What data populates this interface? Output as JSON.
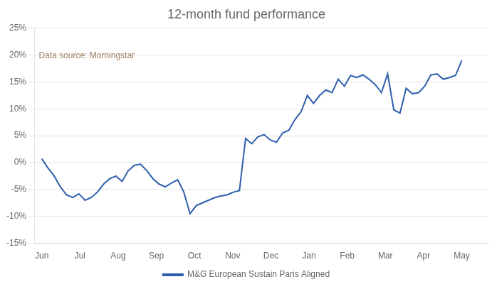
{
  "chart_data": {
    "type": "line",
    "title": "12-month fund performance",
    "annotation": {
      "text": "Data source: Morningstar",
      "color": "#a08060"
    },
    "x": [
      0,
      0.161765,
      0.323529,
      0.485294,
      0.647059,
      0.808824,
      0.970588,
      1.132353,
      1.294118,
      1.455882,
      1.617647,
      1.779412,
      1.941176,
      2.102941,
      2.264706,
      2.426471,
      2.588235,
      2.75,
      2.911765,
      3.073529,
      3.235294,
      3.397059,
      3.558824,
      3.720588,
      3.882353,
      4.044118,
      4.205882,
      4.367647,
      4.529412,
      4.691176,
      4.852941,
      5.014706,
      5.176471,
      5.338235,
      5.5,
      5.661765,
      5.823529,
      5.985294,
      6.147059,
      6.308824,
      6.470588,
      6.632353,
      6.794118,
      6.955882,
      7.117647,
      7.279412,
      7.441176,
      7.602941,
      7.764706,
      7.926471,
      8.088235,
      8.25,
      8.411765,
      8.573529,
      8.735294,
      8.897059,
      9.058824,
      9.220588,
      9.382353,
      9.544118,
      9.705882,
      9.867647,
      10.029412,
      10.191176,
      10.352941,
      10.514706,
      10.676471,
      10.838235,
      11
    ],
    "series": [
      {
        "name": "M&G European Sustain Paris Aligned",
        "color": "#2E5FAC",
        "values": [
          0.7,
          -1.0,
          -2.5,
          -4.5,
          -6.0,
          -6.5,
          -5.8,
          -7.0,
          -6.5,
          -5.5,
          -4.0,
          -3.0,
          -2.5,
          -3.5,
          -1.5,
          -0.5,
          -0.3,
          -1.5,
          -3.0,
          -4.0,
          -4.5,
          -3.8,
          -3.2,
          -5.5,
          -9.5,
          -8.0,
          -7.5,
          -7.0,
          -6.5,
          -6.2,
          -6.0,
          -5.5,
          -5.2,
          4.5,
          3.5,
          4.8,
          5.2,
          4.2,
          3.8,
          5.5,
          6.0,
          8.0,
          9.5,
          12.5,
          11.0,
          12.5,
          13.5,
          13.0,
          15.5,
          14.2,
          16.2,
          15.8,
          16.3,
          15.5,
          14.5,
          13.0,
          16.5,
          9.8,
          9.2,
          13.8,
          12.8,
          13.0,
          14.2,
          16.3,
          16.5,
          15.5,
          15.8,
          16.2,
          19.0
        ]
      }
    ],
    "xlim": [
      -0.2,
      11.7
    ],
    "xticks": [
      {
        "value": 0,
        "label": "Jun"
      },
      {
        "value": 1,
        "label": "Jul"
      },
      {
        "value": 2,
        "label": "Aug"
      },
      {
        "value": 3,
        "label": "Sep"
      },
      {
        "value": 4,
        "label": "Oct"
      },
      {
        "value": 5,
        "label": "Nov"
      },
      {
        "value": 6,
        "label": "Dec"
      },
      {
        "value": 7,
        "label": "Jan"
      },
      {
        "value": 8,
        "label": "Feb"
      },
      {
        "value": 9,
        "label": "Mar"
      },
      {
        "value": 10,
        "label": "Apr"
      },
      {
        "value": 11,
        "label": "May"
      }
    ],
    "ylim": [
      -15,
      25
    ],
    "yticks": [
      {
        "value": -15,
        "label": "-15%"
      },
      {
        "value": -10,
        "label": "-10%"
      },
      {
        "value": -5,
        "label": "-5%"
      },
      {
        "value": 0,
        "label": "0%"
      },
      {
        "value": 5,
        "label": "5%"
      },
      {
        "value": 10,
        "label": "10%"
      },
      {
        "value": 15,
        "label": "15%"
      },
      {
        "value": 20,
        "label": "20%"
      },
      {
        "value": 25,
        "label": "25%"
      }
    ],
    "grid": "y",
    "legend": "bottom"
  }
}
